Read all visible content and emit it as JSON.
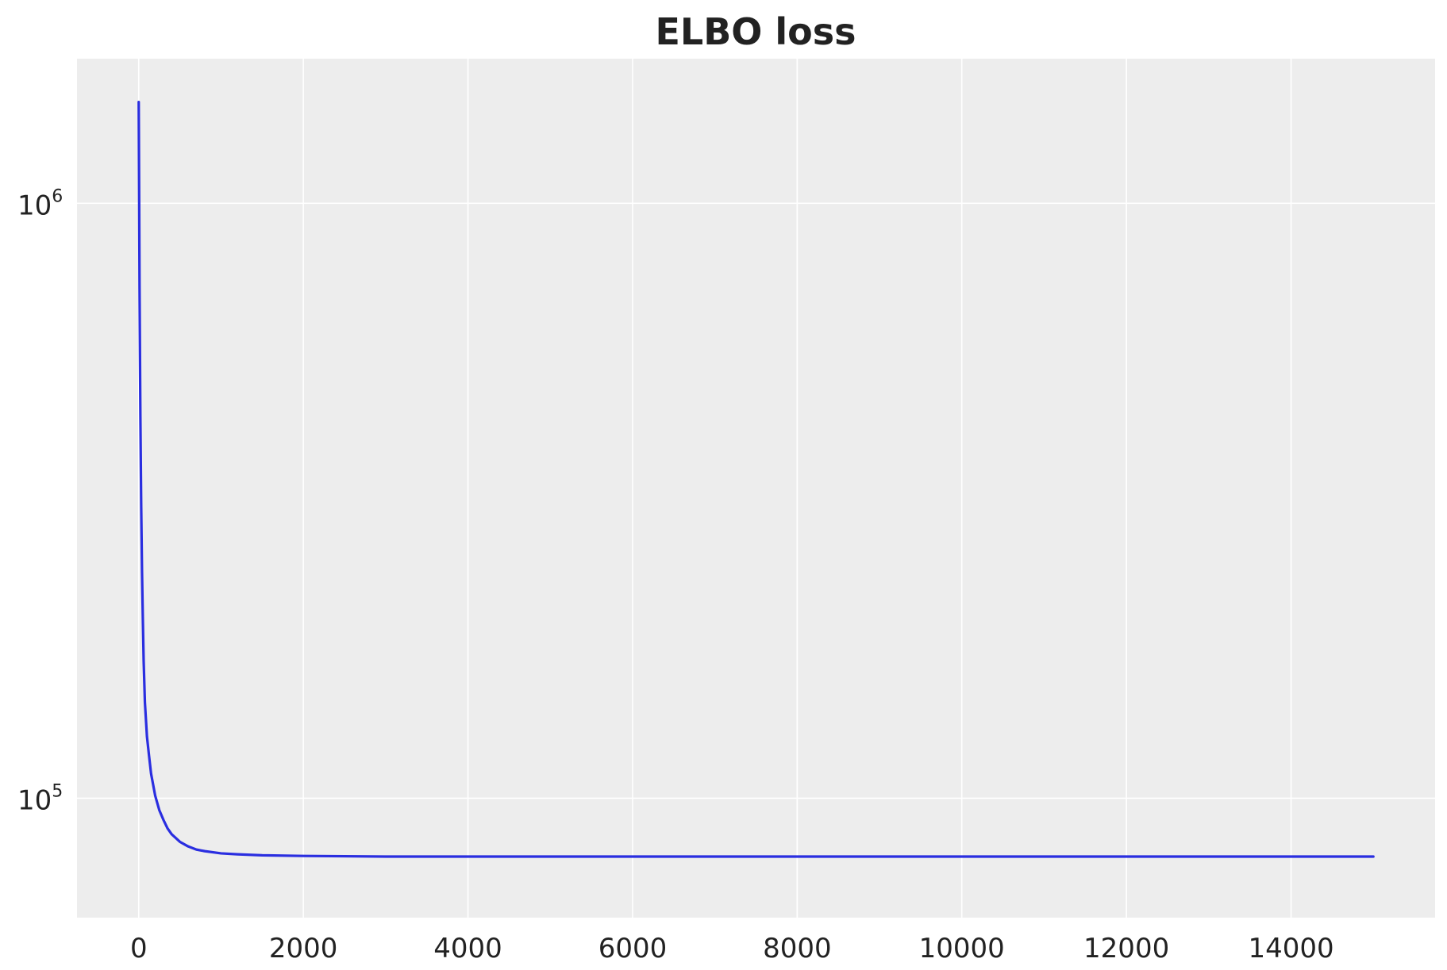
{
  "chart_data": {
    "type": "line",
    "title": "ELBO loss",
    "xlabel": "",
    "ylabel": "",
    "y_scale": "log",
    "xlim": [
      -750,
      15750
    ],
    "ylim": [
      63000,
      1750000
    ],
    "x_ticks": [
      0,
      2000,
      4000,
      6000,
      8000,
      10000,
      12000,
      14000
    ],
    "y_ticks": [
      {
        "value": 100000,
        "base": "10",
        "exp": "5"
      },
      {
        "value": 1000000,
        "base": "10",
        "exp": "6"
      }
    ],
    "grid": true,
    "background_color": "#ededed",
    "line_color": "#2a2ee0",
    "series": [
      {
        "x": [
          0,
          5,
          10,
          20,
          30,
          40,
          50,
          60,
          75,
          100,
          125,
          150,
          200,
          250,
          300,
          350,
          400,
          500,
          600,
          700,
          800,
          1000,
          1200,
          1500,
          2000,
          2500,
          3000,
          4000,
          5000,
          6000,
          8000,
          10000,
          12000,
          14000,
          15000
        ],
        "y": [
          1480000,
          1050000,
          720000,
          440000,
          310000,
          240000,
          200000,
          170000,
          145000,
          127000,
          118000,
          110000,
          101000,
          95500,
          92000,
          89000,
          87000,
          84500,
          83000,
          82000,
          81500,
          80800,
          80500,
          80200,
          80000,
          79900,
          79800,
          79800,
          79800,
          79800,
          79800,
          79800,
          79800,
          79800,
          79800
        ]
      }
    ]
  }
}
